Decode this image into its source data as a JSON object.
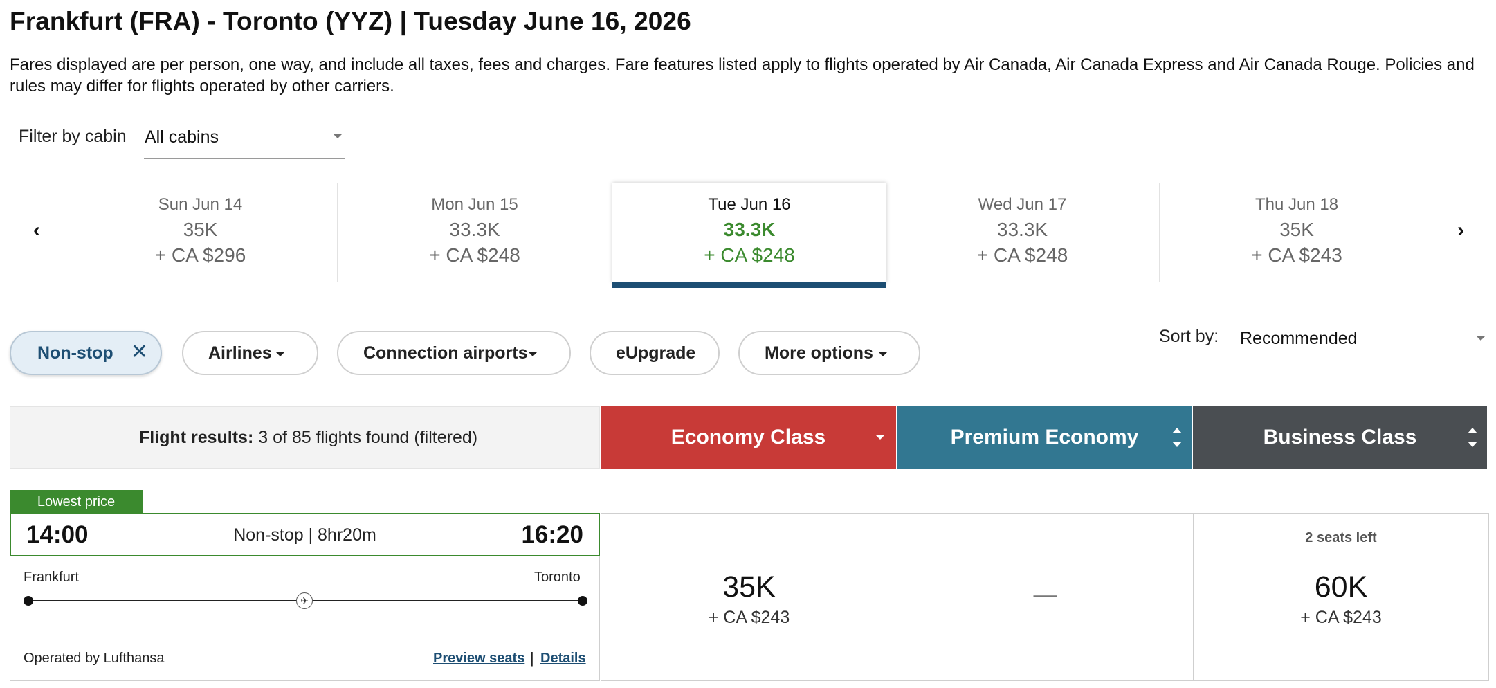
{
  "header": {
    "title": "Frankfurt (FRA) - Toronto (YYZ)  |  Tuesday June 16, 2026",
    "disclaimer": "Fares displayed are per person, one way, and include all taxes, fees and charges. Fare features listed apply to flights operated by Air Canada, Air Canada Express and Air Canada Rouge. Policies and rules may differ for flights operated by other carriers."
  },
  "cabin_filter": {
    "label": "Filter by cabin",
    "value": "All cabins"
  },
  "dates": [
    {
      "day": "Sun Jun 14",
      "points": "35K",
      "cash": "+ CA $296",
      "selected": false
    },
    {
      "day": "Mon Jun 15",
      "points": "33.3K",
      "cash": "+ CA $248",
      "selected": false
    },
    {
      "day": "Tue Jun 16",
      "points": "33.3K",
      "cash": "+ CA $248",
      "selected": true
    },
    {
      "day": "Wed Jun 17",
      "points": "33.3K",
      "cash": "+ CA $248",
      "selected": false
    },
    {
      "day": "Thu Jun 18",
      "points": "35K",
      "cash": "+ CA $243",
      "selected": false
    }
  ],
  "nav": {
    "prev_glyph": "‹",
    "next_glyph": "›"
  },
  "chips": {
    "nonstop": "Non-stop",
    "airlines": "Airlines",
    "connection": "Connection airports",
    "eupgrade": "eUpgrade",
    "more": "More options",
    "close_glyph": "✕"
  },
  "sort": {
    "label": "Sort by:",
    "value": "Recommended"
  },
  "results": {
    "label": "Flight results:",
    "summary": "3 of 85 flights found (filtered)"
  },
  "cabins": {
    "economy": "Economy Class",
    "premium": "Premium Economy",
    "business": "Business Class"
  },
  "colors": {
    "economy": "#c83a37",
    "premium": "#327791",
    "business": "#4a4e52",
    "accent_green": "#3b8a2e",
    "accent_blue": "#1d4e73"
  },
  "flight": {
    "badge": "Lowest price",
    "departure": "14:00",
    "arrival": "16:20",
    "route": "Non-stop | 8hr20m",
    "from_city": "Frankfurt",
    "to_city": "Toronto",
    "operated_by": "Operated by Lufthansa",
    "preview_seats": "Preview seats",
    "separator": "|",
    "details": "Details",
    "plane_icon": "airplane-icon"
  },
  "fares": {
    "economy": {
      "points": "35K",
      "cash": "+ CA $243"
    },
    "premium": {
      "unavailable": "—"
    },
    "business": {
      "seats_left": "2 seats left",
      "points": "60K",
      "cash": "+ CA $243"
    }
  }
}
